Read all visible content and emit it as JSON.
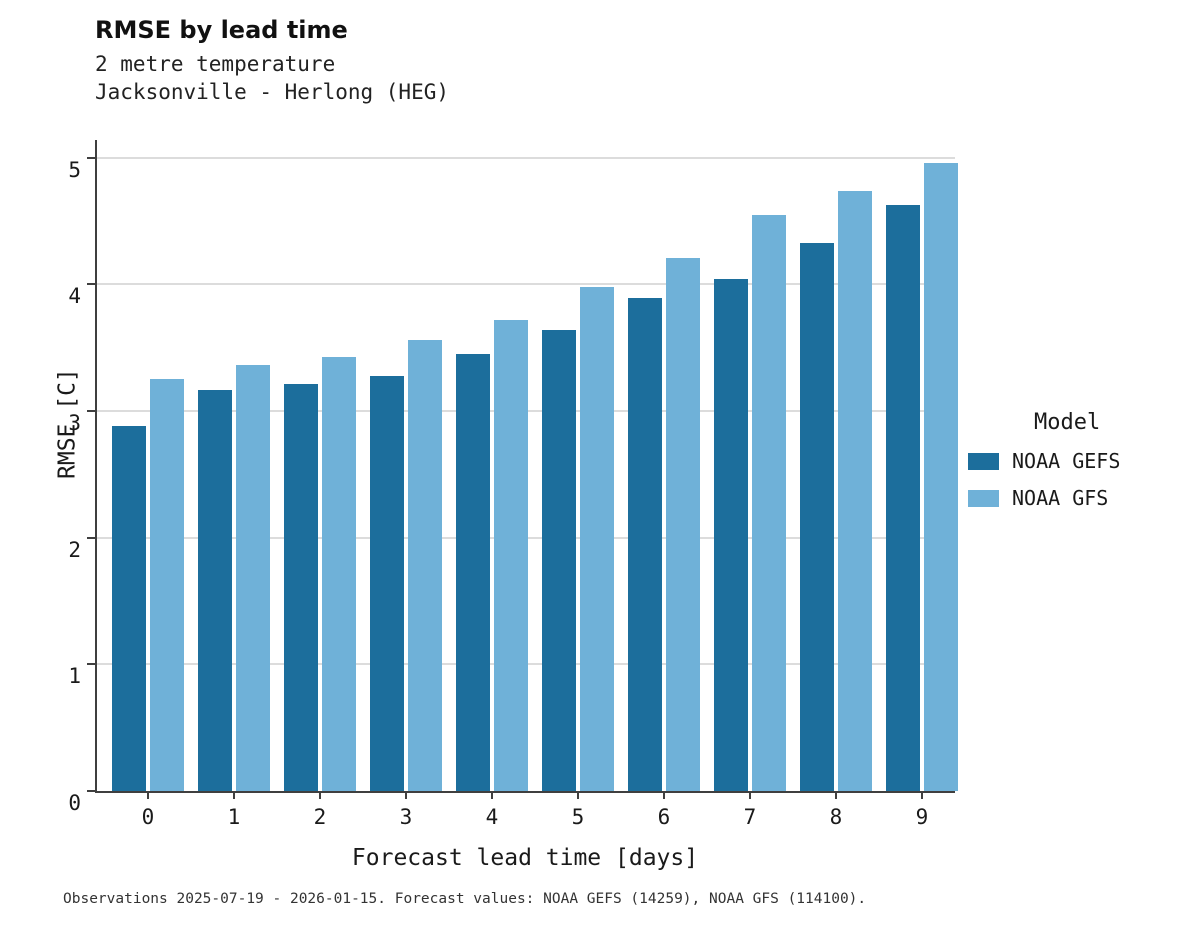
{
  "header": {
    "title": "RMSE by lead time",
    "subtitle_line1": "2 metre temperature",
    "subtitle_line2": "Jacksonville - Herlong (HEG)"
  },
  "legend": {
    "title": "Model",
    "entries": [
      {
        "label": "NOAA GEFS",
        "color": "#1c6e9c"
      },
      {
        "label": "NOAA GFS",
        "color": "#6fb1d8"
      }
    ]
  },
  "caption": "Observations 2025-07-19 - 2026-01-15. Forecast values: NOAA GEFS (14259), NOAA GFS (114100).",
  "chart_data": {
    "type": "bar",
    "title": "RMSE by lead time",
    "subtitle": "2 metre temperature, Jacksonville - Herlong (HEG)",
    "categories": [
      "0",
      "1",
      "2",
      "3",
      "4",
      "5",
      "6",
      "7",
      "8",
      "9"
    ],
    "series": [
      {
        "name": "NOAA GEFS",
        "color": "#1c6e9c",
        "values": [
          2.88,
          3.17,
          3.21,
          3.28,
          3.45,
          3.64,
          3.89,
          4.04,
          4.33,
          4.63
        ]
      },
      {
        "name": "NOAA GFS",
        "color": "#6fb1d8",
        "values": [
          3.25,
          3.36,
          3.43,
          3.56,
          3.72,
          3.98,
          4.21,
          4.55,
          4.74,
          4.96
        ]
      }
    ],
    "xlabel": "Forecast lead time [days]",
    "ylabel": "RMSE [C]",
    "ylim": [
      0,
      5.14
    ],
    "yticks": [
      0,
      1,
      2,
      3,
      4,
      5
    ],
    "grid": "horizontal",
    "legend_position": "right"
  }
}
